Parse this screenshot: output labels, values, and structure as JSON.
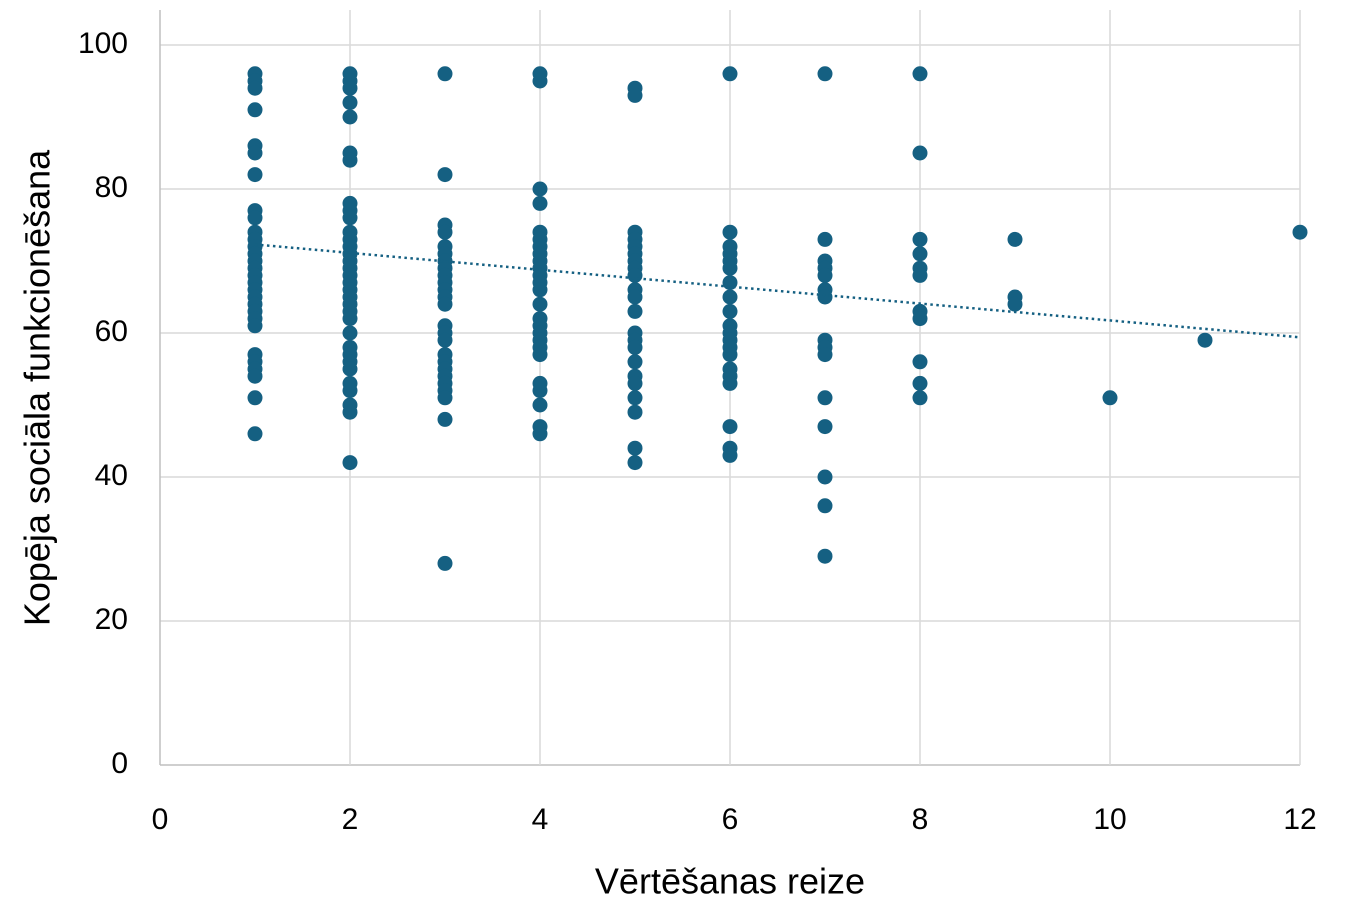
{
  "chart_data": {
    "type": "scatter",
    "x_label": "Vērtēšanas reize",
    "y_label": "Kopēja sociāla funkcionēšana",
    "xlim": [
      0,
      12
    ],
    "xticks": [
      0,
      2,
      4,
      6,
      8,
      10,
      12
    ],
    "ylim": [
      0,
      100
    ],
    "yticks": [
      0,
      20,
      40,
      60,
      80,
      100
    ],
    "grid": true,
    "series": [
      {
        "color": "#156082",
        "x": [
          1,
          1,
          1,
          1,
          1,
          1,
          1,
          1,
          1,
          1,
          1,
          1,
          1,
          1,
          1,
          1,
          1,
          1,
          1,
          1,
          1,
          1,
          1,
          1,
          1,
          1,
          1,
          1,
          1,
          2,
          2,
          2,
          2,
          2,
          2,
          2,
          2,
          2,
          2,
          2,
          2,
          2,
          2,
          2,
          2,
          2,
          2,
          2,
          2,
          2,
          2,
          2,
          2,
          2,
          2,
          2,
          2,
          2,
          2,
          2,
          2,
          2,
          3,
          3,
          3,
          3,
          3,
          3,
          3,
          3,
          3,
          3,
          3,
          3,
          3,
          3,
          3,
          3,
          3,
          3,
          3,
          3,
          3,
          3,
          3,
          3,
          3,
          4,
          4,
          4,
          4,
          4,
          4,
          4,
          4,
          4,
          4,
          4,
          4,
          4,
          4,
          4,
          4,
          4,
          4,
          4,
          4,
          4,
          4,
          4,
          4,
          4,
          5,
          5,
          5,
          5,
          5,
          5,
          5,
          5,
          5,
          5,
          5,
          5,
          5,
          5,
          5,
          5,
          5,
          5,
          5,
          5,
          5,
          5,
          6,
          6,
          6,
          6,
          6,
          6,
          6,
          6,
          6,
          6,
          6,
          6,
          6,
          6,
          6,
          6,
          6,
          6,
          6,
          6,
          7,
          7,
          7,
          7,
          7,
          7,
          7,
          7,
          7,
          7,
          7,
          7,
          7,
          7,
          7,
          8,
          8,
          8,
          8,
          8,
          8,
          8,
          8,
          8,
          8,
          8,
          9,
          9,
          9,
          10,
          11,
          12
        ],
        "values": [
          96,
          95,
          94,
          91,
          86,
          85,
          82,
          77,
          76,
          74,
          73,
          72,
          71,
          70,
          69,
          68,
          67,
          66,
          65,
          64,
          63,
          62,
          61,
          57,
          56,
          55,
          54,
          51,
          46,
          96,
          95,
          94,
          92,
          90,
          85,
          84,
          78,
          77,
          76,
          74,
          73,
          72,
          71,
          70,
          69,
          68,
          67,
          66,
          65,
          64,
          63,
          62,
          60,
          58,
          57,
          56,
          55,
          53,
          52,
          50,
          49,
          42,
          96,
          82,
          75,
          74,
          72,
          71,
          70,
          69,
          68,
          67,
          66,
          65,
          64,
          61,
          60,
          59,
          57,
          56,
          55,
          54,
          53,
          52,
          51,
          48,
          28,
          96,
          95,
          80,
          78,
          74,
          73,
          72,
          71,
          70,
          69,
          68,
          67,
          66,
          64,
          62,
          61,
          60,
          59,
          58,
          57,
          53,
          52,
          50,
          47,
          46,
          94,
          93,
          74,
          73,
          72,
          71,
          70,
          69,
          68,
          66,
          65,
          63,
          60,
          59,
          58,
          56,
          54,
          53,
          51,
          49,
          44,
          42,
          96,
          74,
          72,
          71,
          70,
          69,
          67,
          65,
          63,
          61,
          60,
          59,
          58,
          57,
          55,
          54,
          53,
          47,
          44,
          43,
          96,
          73,
          70,
          69,
          68,
          66,
          65,
          59,
          58,
          57,
          51,
          47,
          40,
          36,
          29,
          96,
          85,
          73,
          71,
          69,
          68,
          63,
          62,
          56,
          53,
          51,
          73,
          65,
          64,
          51,
          59,
          74
        ]
      }
    ],
    "trendline": {
      "color": "#156082",
      "style": "dotted",
      "x": [
        1,
        12
      ],
      "values": [
        72.3,
        59.4
      ]
    }
  }
}
